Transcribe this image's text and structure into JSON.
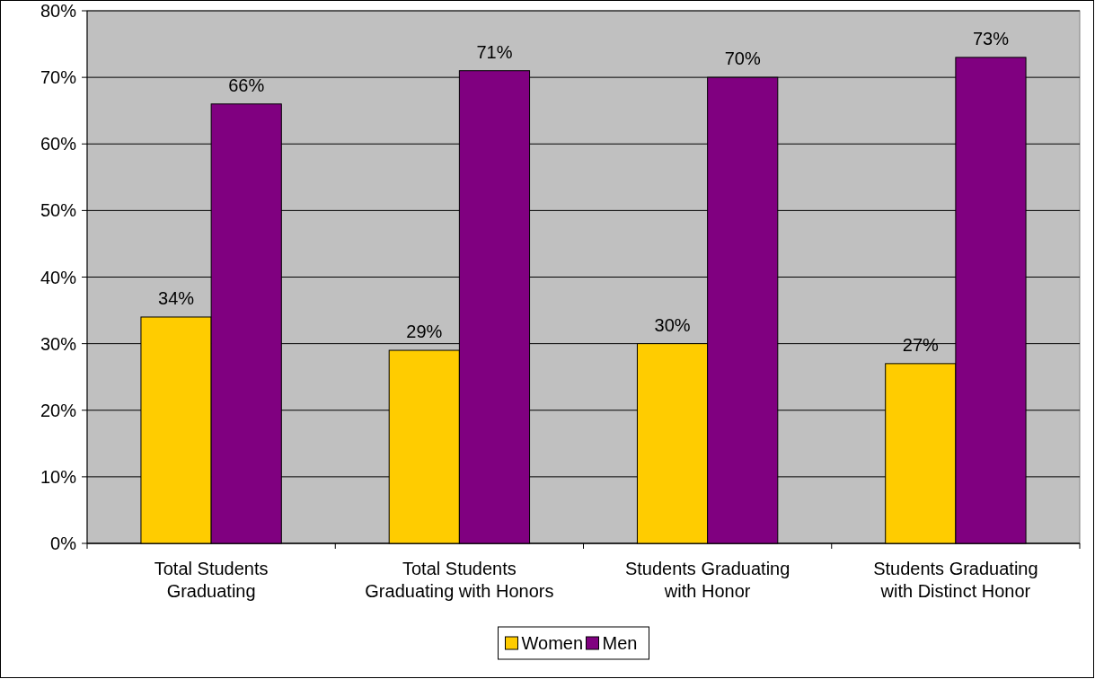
{
  "chart_data": {
    "type": "bar",
    "categories": [
      "Total Students Graduating",
      "Total Students Graduating with Honors",
      "Students Graduating with Honor",
      "Students Graduating with Distinct Honor"
    ],
    "series": [
      {
        "name": "Women",
        "color": "#ffcc00",
        "values": [
          34,
          29,
          30,
          27
        ],
        "value_labels": [
          "34%",
          "29%",
          "30%",
          "27%"
        ]
      },
      {
        "name": "Men",
        "color": "#800080",
        "values": [
          66,
          71,
          70,
          73
        ],
        "value_labels": [
          "66%",
          "71%",
          "70%",
          "73%"
        ]
      }
    ],
    "ylim": [
      0,
      80
    ],
    "yticks": [
      {
        "value": 0,
        "label": "0%"
      },
      {
        "value": 10,
        "label": "10%"
      },
      {
        "value": 20,
        "label": "20%"
      },
      {
        "value": 30,
        "label": "30%"
      },
      {
        "value": 40,
        "label": "40%"
      },
      {
        "value": 50,
        "label": "50%"
      },
      {
        "value": 60,
        "label": "60%"
      },
      {
        "value": 70,
        "label": "70%"
      },
      {
        "value": 80,
        "label": "80%"
      }
    ],
    "grid": "y",
    "legend": "bottom"
  }
}
